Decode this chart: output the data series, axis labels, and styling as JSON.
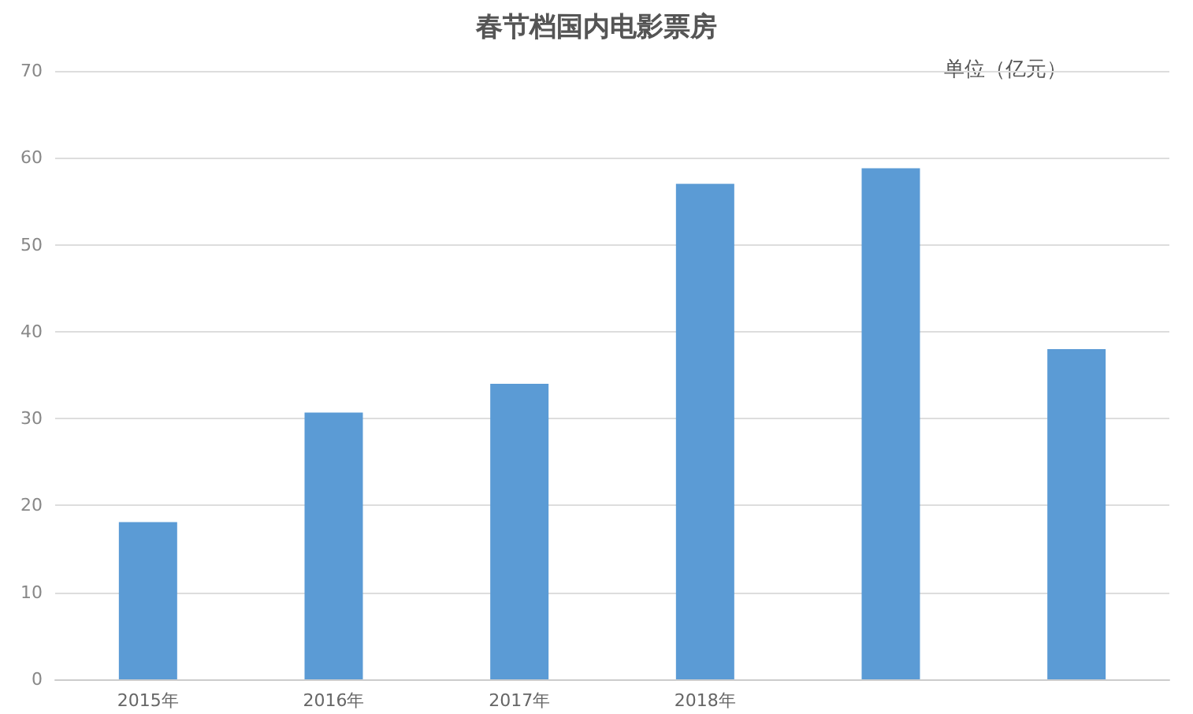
{
  "chart_data": {
    "type": "bar",
    "title": "春节档国内电影票房",
    "annotations": [
      "单位（亿元）"
    ],
    "categories": [
      "2015年",
      "2016年",
      "2017年",
      "2018年",
      null,
      null
    ],
    "values": [
      18.1,
      30.7,
      34,
      57,
      58.8,
      38
    ],
    "color": "#5b9bd5",
    "ylim": [
      0,
      70
    ],
    "yticks": [
      0,
      10,
      20,
      30,
      40,
      50,
      60,
      70
    ],
    "grid": "y"
  }
}
